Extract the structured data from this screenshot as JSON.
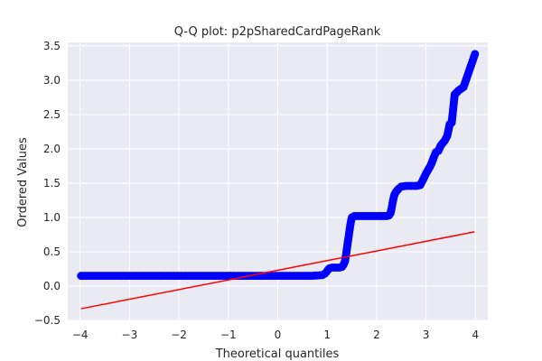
{
  "chart_data": {
    "type": "scatter",
    "title": "Q-Q plot: p2pSharedCardPageRank",
    "xlabel": "Theoretical quantiles",
    "ylabel": "Ordered Values",
    "xlim": [
      -4.25,
      4.25
    ],
    "ylim": [
      -0.5,
      3.55
    ],
    "x_ticks": [
      -4,
      -3,
      -2,
      -1,
      0,
      1,
      2,
      3,
      4
    ],
    "x_tick_labels": [
      "−4",
      "−3",
      "−2",
      "−1",
      "0",
      "1",
      "2",
      "3",
      "4"
    ],
    "y_ticks": [
      -0.5,
      0.0,
      0.5,
      1.0,
      1.5,
      2.0,
      2.5,
      3.0,
      3.5
    ],
    "y_tick_labels": [
      "−0.5",
      "0.0",
      "0.5",
      "1.0",
      "1.5",
      "2.0",
      "2.5",
      "3.0",
      "3.5"
    ],
    "grid": true,
    "background": "#eaeaf2",
    "series": [
      {
        "marker_color": "#0000ff",
        "points": [
          [
            -3.98,
            0.15
          ],
          [
            -3.75,
            0.15
          ],
          [
            -3.6,
            0.15
          ],
          [
            -3.45,
            0.15
          ],
          [
            -3.3,
            0.15
          ],
          [
            -3.1,
            0.15
          ],
          [
            -2.9,
            0.15
          ],
          [
            -2.7,
            0.15
          ],
          [
            -2.5,
            0.15
          ],
          [
            -2.3,
            0.15
          ],
          [
            -2.1,
            0.15
          ],
          [
            -1.9,
            0.15
          ],
          [
            -1.7,
            0.15
          ],
          [
            -1.5,
            0.15
          ],
          [
            -1.3,
            0.15
          ],
          [
            -1.1,
            0.15
          ],
          [
            -0.9,
            0.15
          ],
          [
            -0.7,
            0.15
          ],
          [
            -0.5,
            0.15
          ],
          [
            -0.3,
            0.15
          ],
          [
            -0.1,
            0.15
          ],
          [
            0.1,
            0.15
          ],
          [
            0.3,
            0.15
          ],
          [
            0.5,
            0.15
          ],
          [
            0.7,
            0.15
          ],
          [
            0.9,
            0.16
          ],
          [
            0.95,
            0.18
          ],
          [
            0.99,
            0.21
          ],
          [
            1.02,
            0.24
          ],
          [
            1.05,
            0.26
          ],
          [
            1.1,
            0.27
          ],
          [
            1.15,
            0.27
          ],
          [
            1.2,
            0.27
          ],
          [
            1.25,
            0.27
          ],
          [
            1.3,
            0.28
          ],
          [
            1.33,
            0.31
          ],
          [
            1.36,
            0.36
          ],
          [
            1.38,
            0.45
          ],
          [
            1.4,
            0.55
          ],
          [
            1.42,
            0.65
          ],
          [
            1.44,
            0.75
          ],
          [
            1.46,
            0.85
          ],
          [
            1.48,
            0.94
          ],
          [
            1.5,
            1.0
          ],
          [
            1.55,
            1.02
          ],
          [
            1.6,
            1.02
          ],
          [
            1.7,
            1.02
          ],
          [
            1.8,
            1.02
          ],
          [
            1.9,
            1.02
          ],
          [
            2.0,
            1.02
          ],
          [
            2.1,
            1.02
          ],
          [
            2.2,
            1.02
          ],
          [
            2.25,
            1.03
          ],
          [
            2.28,
            1.06
          ],
          [
            2.3,
            1.12
          ],
          [
            2.32,
            1.2
          ],
          [
            2.34,
            1.27
          ],
          [
            2.36,
            1.33
          ],
          [
            2.4,
            1.38
          ],
          [
            2.45,
            1.42
          ],
          [
            2.5,
            1.45
          ],
          [
            2.6,
            1.46
          ],
          [
            2.7,
            1.46
          ],
          [
            2.8,
            1.46
          ],
          [
            2.88,
            1.47
          ],
          [
            2.92,
            1.52
          ],
          [
            2.96,
            1.58
          ],
          [
            3.0,
            1.64
          ],
          [
            3.04,
            1.69
          ],
          [
            3.08,
            1.74
          ],
          [
            3.12,
            1.8
          ],
          [
            3.16,
            1.88
          ],
          [
            3.2,
            1.95
          ],
          [
            3.25,
            1.97
          ],
          [
            3.3,
            2.05
          ],
          [
            3.38,
            2.12
          ],
          [
            3.43,
            2.19
          ],
          [
            3.48,
            2.36
          ],
          [
            3.52,
            2.38
          ],
          [
            3.58,
            2.79
          ],
          [
            3.66,
            2.85
          ],
          [
            3.76,
            2.9
          ],
          [
            3.99,
            3.38
          ]
        ]
      }
    ],
    "reference_line": {
      "color": "#ff0000",
      "x": [
        -3.98,
        3.98
      ],
      "y": [
        -0.33,
        0.79
      ]
    }
  }
}
